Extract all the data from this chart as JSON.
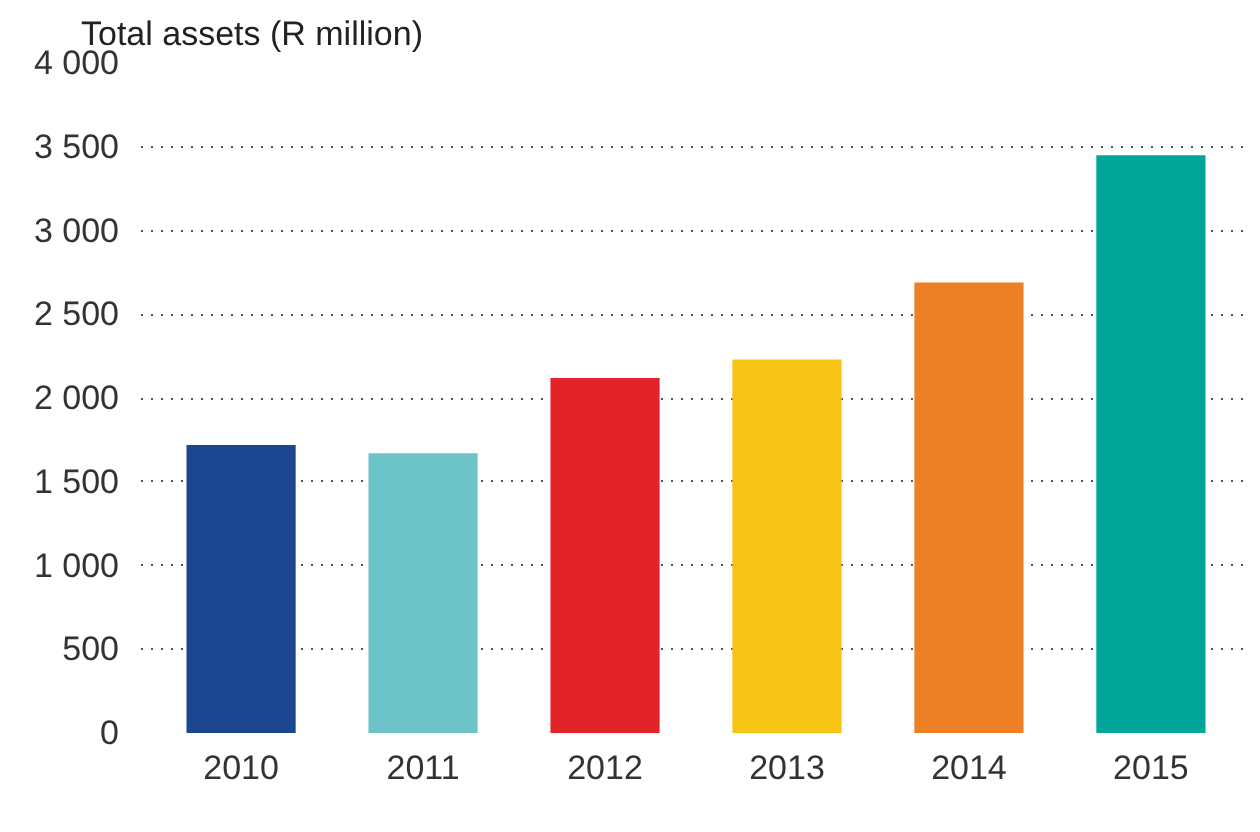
{
  "chart_data": {
    "type": "bar",
    "title": "Total assets (R million)",
    "categories": [
      "2010",
      "2011",
      "2012",
      "2013",
      "2014",
      "2015"
    ],
    "values": [
      1720,
      1670,
      2120,
      2230,
      2690,
      3450
    ],
    "colors": [
      "#1c468f",
      "#6cc3c8",
      "#e3232a",
      "#f7c416",
      "#ed7f25",
      "#00a69a"
    ],
    "ylim": [
      0,
      4000
    ],
    "yticks": [
      0,
      500,
      {
        "value": 1000,
        "label": "1 000"
      },
      {
        "value": 1500,
        "label": "1 500"
      },
      {
        "value": 2000,
        "label": "2 000"
      },
      {
        "value": 2500,
        "label": "2 500"
      },
      {
        "value": 3000,
        "label": "3 000"
      },
      {
        "value": 3500,
        "label": "3 500"
      },
      {
        "value": 4000,
        "label": "4 000"
      }
    ],
    "grid": "y"
  }
}
